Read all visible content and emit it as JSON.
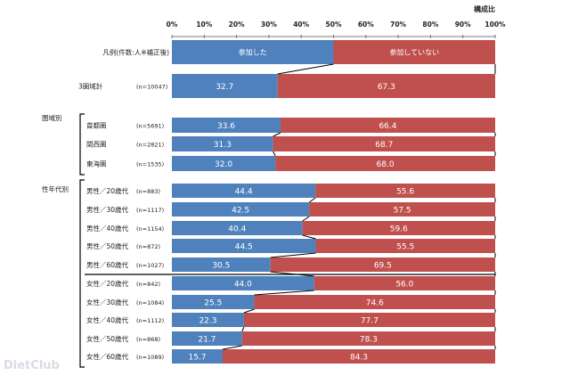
{
  "chart_data": {
    "type": "bar",
    "stacked": true,
    "orientation": "horizontal",
    "unit_label": "構成比",
    "xlim": [
      0,
      100
    ],
    "x_ticks": [
      "0%",
      "10%",
      "20%",
      "30%",
      "40%",
      "50%",
      "60%",
      "70%",
      "80%",
      "90%",
      "100%"
    ],
    "legend": {
      "label": "凡例(件数:人※補正後)",
      "series": [
        "参加した",
        "参加していない"
      ],
      "colors": [
        "#4f81bd",
        "#c0504d"
      ]
    },
    "groups": [
      {
        "name": "",
        "rows": [
          {
            "label": "3圏域計",
            "n": "(n=10047)",
            "values": [
              32.7,
              67.3
            ]
          }
        ]
      },
      {
        "name": "圏域別",
        "rows": [
          {
            "label": "首都圏",
            "n": "(n=5691)",
            "values": [
              33.6,
              66.4
            ]
          },
          {
            "label": "関西圏",
            "n": "(n=2821)",
            "values": [
              31.3,
              68.7
            ]
          },
          {
            "label": "東海圏",
            "n": "(n=1535)",
            "values": [
              32.0,
              68.0
            ]
          }
        ]
      },
      {
        "name": "性年代別",
        "rows": [
          {
            "label": "男性／20歳代",
            "n": "(n=883)",
            "values": [
              44.4,
              55.6
            ]
          },
          {
            "label": "男性／30歳代",
            "n": "(n=1117)",
            "values": [
              42.5,
              57.5
            ]
          },
          {
            "label": "男性／40歳代",
            "n": "(n=1154)",
            "values": [
              40.4,
              59.6
            ]
          },
          {
            "label": "男性／50歳代",
            "n": "(n=872)",
            "values": [
              44.5,
              55.5
            ]
          },
          {
            "label": "男性／60歳代",
            "n": "(n=1027)",
            "values": [
              30.5,
              69.5
            ]
          },
          {
            "label": "女性／20歳代",
            "n": "(n=842)",
            "values": [
              44.0,
              56.0
            ]
          },
          {
            "label": "女性／30歳代",
            "n": "(n=1084)",
            "values": [
              25.5,
              74.6
            ]
          },
          {
            "label": "女性／40歳代",
            "n": "(n=1112)",
            "values": [
              22.3,
              77.7
            ]
          },
          {
            "label": "女性／50歳代",
            "n": "(n=868)",
            "values": [
              21.7,
              78.3
            ]
          },
          {
            "label": "女性／60歳代",
            "n": "(n=1089)",
            "values": [
              15.7,
              84.3
            ]
          }
        ]
      }
    ]
  },
  "watermark": "DietClub"
}
